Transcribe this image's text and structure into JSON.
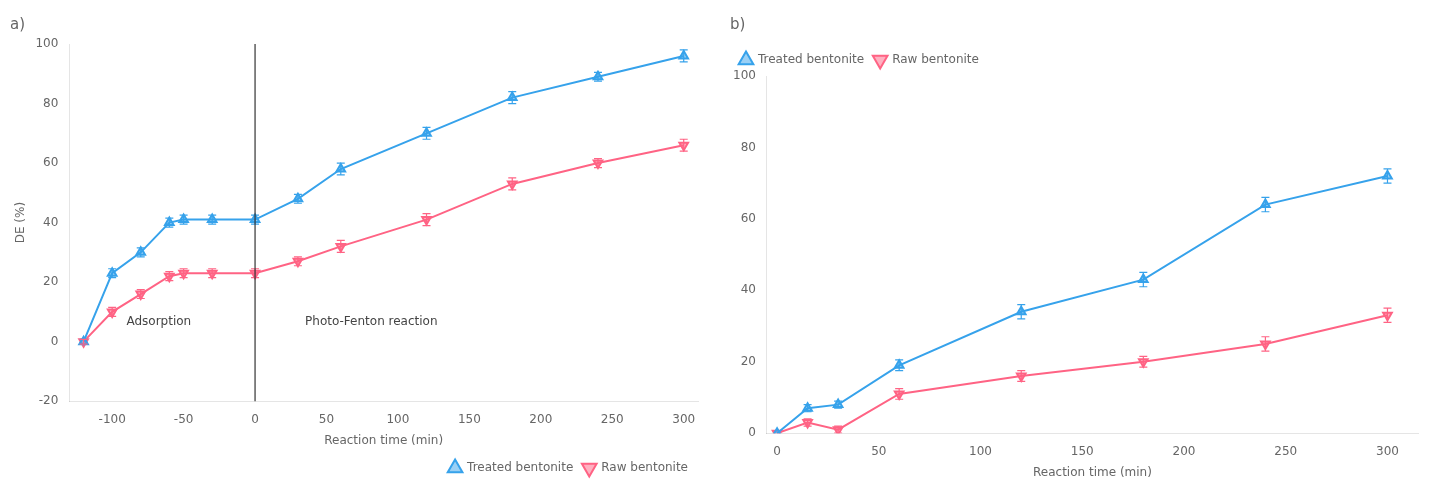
{
  "chart_data": [
    {
      "type": "line",
      "title": "a)",
      "x_label": "Reaction time (min)",
      "y_label": "DE (%)",
      "x": [
        -120,
        -100,
        -80,
        -60,
        -50,
        -30,
        0,
        30,
        60,
        120,
        180,
        240,
        300
      ],
      "series": [
        {
          "name": "Treated bentonite",
          "marker": "triangle-up",
          "values": [
            0,
            23,
            30,
            40,
            41,
            41,
            41,
            48,
            58,
            70,
            82,
            89,
            96
          ],
          "errors": [
            0.8,
            1.5,
            1.5,
            1.5,
            1.5,
            1.5,
            1.5,
            1.5,
            2,
            2,
            2,
            1.5,
            2
          ]
        },
        {
          "name": "Raw bentonite",
          "marker": "triangle-down",
          "values": [
            0,
            10,
            16,
            22,
            23,
            23,
            23,
            27,
            32,
            41,
            53,
            60,
            66
          ],
          "errors": [
            0.8,
            1.5,
            1.5,
            1.5,
            1.5,
            1.5,
            1.5,
            1.5,
            2,
            2,
            2,
            1.5,
            2
          ]
        }
      ],
      "xlim": [
        -130,
        310
      ],
      "xticks": [
        -100,
        -50,
        0,
        50,
        100,
        150,
        200,
        250,
        300
      ],
      "ylim": [
        -20,
        100
      ],
      "yticks": [
        -20,
        0,
        20,
        40,
        60,
        80,
        100
      ],
      "vlines": [
        0
      ],
      "annotations": [
        {
          "text": "Adsorption",
          "x": -90,
          "y": 4.5
        },
        {
          "text": "Photo-Fenton reaction",
          "x": 35,
          "y": 4.5
        }
      ],
      "legend": "lower right",
      "grid": false
    },
    {
      "type": "line",
      "title": "b)",
      "x_label": "Reaction time (min)",
      "x": [
        0,
        15,
        30,
        60,
        120,
        180,
        240,
        300
      ],
      "series": [
        {
          "name": "Treated bentonite",
          "marker": "triangle-up",
          "values": [
            0,
            7,
            8,
            19,
            34,
            43,
            64,
            72
          ],
          "errors": [
            0,
            1,
            1,
            1.5,
            2,
            2,
            2,
            2
          ]
        },
        {
          "name": "Raw bentonite",
          "marker": "triangle-down",
          "values": [
            0,
            3,
            1,
            11,
            16,
            20,
            25,
            33
          ],
          "errors": [
            0,
            1,
            1,
            1.5,
            1.5,
            1.5,
            2,
            2
          ]
        }
      ],
      "xlim": [
        -5,
        315
      ],
      "xticks": [
        0,
        50,
        100,
        150,
        200,
        250,
        300
      ],
      "ylim": [
        0,
        100
      ],
      "yticks": [
        0,
        20,
        40,
        60,
        80,
        100
      ],
      "legend": "upper left",
      "grid": false
    }
  ]
}
